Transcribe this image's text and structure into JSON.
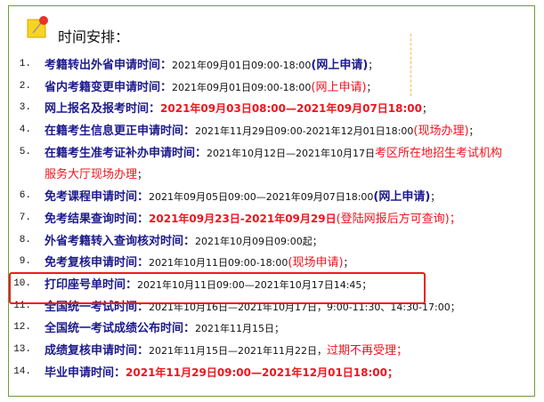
{
  "header": {
    "title": "时间安排：",
    "icon": "pushpin-note-icon"
  },
  "colors": {
    "label": "#1d1a8c",
    "highlight": "#f0141e",
    "border": "#6f9a3c"
  },
  "items": [
    {
      "num": "1.",
      "label": "考籍转出外省申请时间：",
      "parts": [
        {
          "text": "2021年09月01日09:00-18:00",
          "style": "plain"
        },
        {
          "text": "(网上申请)",
          "style": "blue"
        },
        {
          "text": "；",
          "style": "plain"
        }
      ]
    },
    {
      "num": "2.",
      "label": "省内考籍变更申请时间：",
      "parts": [
        {
          "text": "2021年09月01日09:00-18:00",
          "style": "plain"
        },
        {
          "text": "(网上申请)",
          "style": "red"
        },
        {
          "text": "；",
          "style": "plain"
        }
      ]
    },
    {
      "num": "3.",
      "label": "网上报名及报考时间：",
      "parts": [
        {
          "text": "2021年09月03日08:00—2021年09月07日18:00",
          "style": "redbold"
        },
        {
          "text": "；",
          "style": "plain"
        }
      ]
    },
    {
      "num": "4.",
      "label": "在籍考生信息更正申请时间：",
      "parts": [
        {
          "text": "2021年11月29日09:00-2021年12月01日18:00",
          "style": "plain"
        },
        {
          "text": "(现场办理)",
          "style": "red"
        },
        {
          "text": "；",
          "style": "plain"
        }
      ]
    },
    {
      "num": "5.",
      "label": "在籍考生准考证补办申请时间：",
      "parts": [
        {
          "text": "2021年10月12日—2021年10月17日",
          "style": "plain"
        },
        {
          "text": "考区所在地招生考试机构",
          "style": "red"
        }
      ]
    },
    {
      "num": "",
      "label": "",
      "parts": [
        {
          "text": "服务大厅现场办理",
          "style": "red"
        },
        {
          "text": "；",
          "style": "plain"
        }
      ]
    },
    {
      "num": "6.",
      "label": "免考课程申请时间：",
      "parts": [
        {
          "text": "2021年09月05日09:00—2021年09月07日18:00",
          "style": "plain"
        },
        {
          "text": "(网上申请)",
          "style": "blue"
        },
        {
          "text": "；",
          "style": "plain"
        }
      ]
    },
    {
      "num": "7.",
      "label": "免考结果查询时间：",
      "parts": [
        {
          "text": "2021年09月23日-2021年09月29日",
          "style": "redbold"
        },
        {
          "text": "(登陆网报后方可查询)；",
          "style": "red"
        }
      ]
    },
    {
      "num": "8.",
      "label": "外省考籍转入查询核对时间：",
      "parts": [
        {
          "text": "2021年10月09日09:00起；",
          "style": "plain"
        }
      ]
    },
    {
      "num": "9.",
      "label": "免考复核申请时间：",
      "parts": [
        {
          "text": "2021年10月11日09:00-18:00",
          "style": "plain"
        },
        {
          "text": "(现场申请)",
          "style": "red"
        },
        {
          "text": "；",
          "style": "plain"
        }
      ]
    },
    {
      "num": "10.",
      "label": "打印座号单时间：",
      "parts": [
        {
          "text": "2021年10月11日09:00—2021年10月17日14:45；",
          "style": "plain"
        }
      ]
    },
    {
      "num": "11.",
      "label": "全国统一考试时间：",
      "parts": [
        {
          "text": "2021年10月16日—2021年10月17日，9:00-11:30、14:30-17:00；",
          "style": "plain"
        }
      ]
    },
    {
      "num": "12.",
      "label": "全国统一考试成绩公布时间：",
      "parts": [
        {
          "text": "2021年11月15日；",
          "style": "plain"
        }
      ]
    },
    {
      "num": "13.",
      "label": "成绩复核申请时间：",
      "parts": [
        {
          "text": "2021年11月15日—2021年11月22日，",
          "style": "plain"
        },
        {
          "text": "过期不再受理；",
          "style": "red"
        }
      ]
    },
    {
      "num": "14.",
      "label": "毕业申请时间：",
      "parts": [
        {
          "text": "2021年11月29日09:00—2021年12月01日18:00；",
          "style": "redbold"
        }
      ]
    }
  ]
}
